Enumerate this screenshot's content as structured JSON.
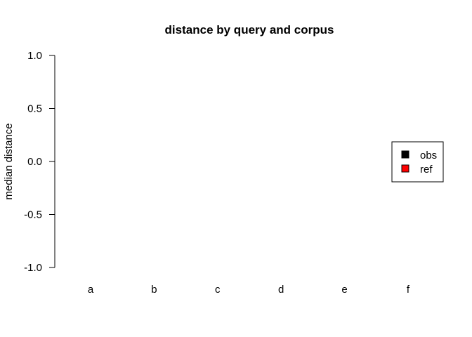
{
  "chart_data": {
    "type": "bar",
    "title": "distance by query and corpus",
    "xlabel": "",
    "ylabel": "median distance",
    "categories": [
      "a",
      "b",
      "c",
      "d",
      "e",
      "f"
    ],
    "series": [
      {
        "name": "obs",
        "values": [
          0,
          0,
          0,
          0,
          0,
          0
        ],
        "color": "#000000"
      },
      {
        "name": "ref",
        "values": [
          0,
          0,
          0,
          0,
          0,
          0
        ],
        "color": "#ff0000"
      }
    ],
    "ylim": [
      -1.0,
      1.0
    ],
    "yticks": [
      "-1.0",
      "-0.5",
      "0.0",
      "0.5",
      "1.0"
    ],
    "grid": false,
    "legend": {
      "placement": "right",
      "entries": [
        {
          "label": "obs",
          "color": "#000000"
        },
        {
          "label": "ref",
          "color": "#ff0000"
        }
      ]
    }
  }
}
